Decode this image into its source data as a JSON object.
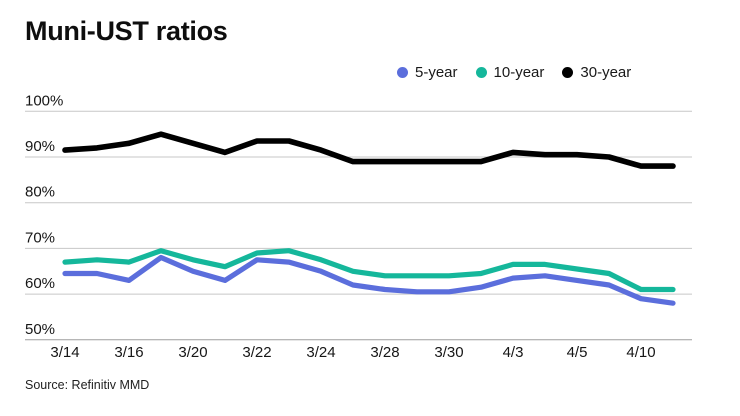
{
  "title": "Muni-UST ratios",
  "source": "Source: Refinitiv MMD",
  "legend": {
    "items": [
      {
        "label": "5-year",
        "color": "#5b6edc"
      },
      {
        "label": "10-year",
        "color": "#15b79b"
      },
      {
        "label": "30-year",
        "color": "#000000"
      }
    ]
  },
  "chart_data": {
    "type": "line",
    "title": "Muni-UST ratios",
    "x": [
      "3/14",
      "3/15",
      "3/16",
      "3/17",
      "3/20",
      "3/21",
      "3/22",
      "3/23",
      "3/24",
      "3/27",
      "3/28",
      "3/29",
      "3/30",
      "3/31",
      "4/3",
      "4/4",
      "4/5",
      "4/6",
      "4/10",
      "4/11"
    ],
    "x_tick_indices": [
      0,
      2,
      4,
      6,
      8,
      10,
      12,
      14,
      16,
      18
    ],
    "x_tick_labels": [
      "3/14",
      "3/16",
      "3/20",
      "3/22",
      "3/24",
      "3/28",
      "3/30",
      "4/3",
      "4/5",
      "4/10"
    ],
    "series": [
      {
        "name": "5-year",
        "color": "#5b6edc",
        "values": [
          64.5,
          64.5,
          63,
          68,
          65,
          63,
          67.5,
          67,
          65,
          62,
          61,
          60.5,
          60.5,
          61.5,
          63.5,
          64,
          63,
          62,
          59,
          58
        ]
      },
      {
        "name": "10-year",
        "color": "#15b79b",
        "values": [
          67,
          67.5,
          67,
          69.5,
          67.5,
          66,
          69,
          69.5,
          67.5,
          65,
          64,
          64,
          64,
          64.5,
          66.5,
          66.5,
          65.5,
          64.5,
          61,
          61
        ]
      },
      {
        "name": "30-year",
        "color": "#000000",
        "values": [
          91.5,
          92,
          93,
          95,
          93,
          91,
          93.5,
          93.5,
          91.5,
          89,
          89,
          89,
          89,
          89,
          91,
          90.5,
          90.5,
          90,
          88,
          88
        ]
      }
    ],
    "ylim": [
      50,
      100
    ],
    "yticks": [
      100,
      90,
      80,
      70,
      60,
      50
    ],
    "ytick_suffix": "%",
    "grid": true,
    "legend_position": "top-right"
  }
}
